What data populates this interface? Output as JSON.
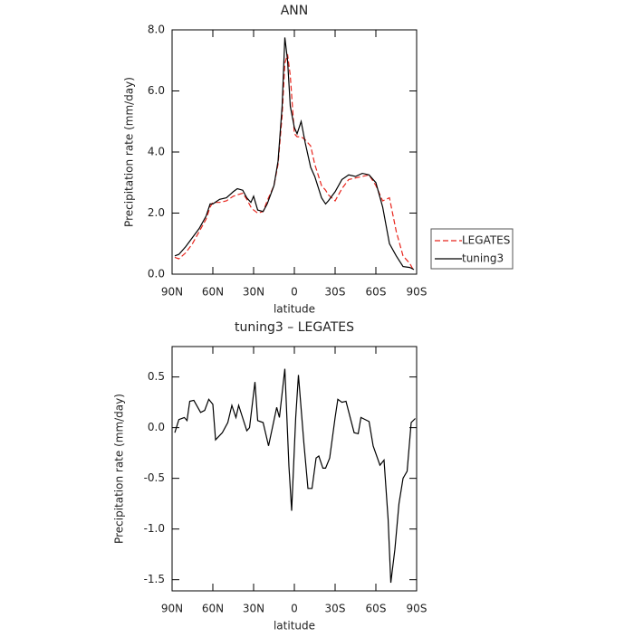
{
  "chart_data": [
    {
      "type": "line",
      "title": "ANN",
      "x_label": "latitude",
      "y_label": "Precipitation rate (mm/day)",
      "x": [
        88,
        85,
        80,
        75,
        70,
        65,
        62,
        60,
        55,
        50,
        45,
        42,
        38,
        35,
        32,
        30,
        27,
        23,
        20,
        15,
        12,
        9,
        7,
        5,
        3,
        0,
        -2,
        -5,
        -8,
        -12,
        -15,
        -20,
        -23,
        -25,
        -30,
        -35,
        -40,
        -45,
        -50,
        -55,
        -60,
        -65,
        -70,
        -75,
        -80,
        -85,
        -88
      ],
      "series": [
        {
          "name": "LEGATES",
          "color": "#e8241c",
          "dashed": true,
          "values": [
            0.55,
            0.5,
            0.7,
            1.0,
            1.4,
            1.8,
            2.2,
            2.35,
            2.35,
            2.4,
            2.55,
            2.6,
            2.65,
            2.45,
            2.2,
            2.1,
            2.0,
            2.05,
            2.4,
            2.9,
            3.6,
            5.2,
            6.9,
            7.2,
            6.5,
            4.6,
            4.5,
            4.5,
            4.4,
            4.2,
            3.6,
            2.9,
            2.75,
            2.6,
            2.4,
            2.8,
            3.1,
            3.15,
            3.2,
            3.25,
            2.9,
            2.4,
            2.5,
            1.4,
            0.6,
            0.35,
            0.1
          ]
        },
        {
          "name": "tuning3",
          "color": "#000000",
          "dashed": false,
          "values": [
            0.6,
            0.65,
            0.9,
            1.2,
            1.5,
            1.9,
            2.3,
            2.3,
            2.45,
            2.5,
            2.7,
            2.8,
            2.75,
            2.5,
            2.35,
            2.55,
            2.1,
            2.05,
            2.3,
            2.9,
            3.7,
            5.5,
            7.75,
            7.0,
            5.5,
            4.8,
            4.6,
            5.0,
            4.3,
            3.5,
            3.2,
            2.5,
            2.3,
            2.4,
            2.7,
            3.1,
            3.25,
            3.2,
            3.3,
            3.25,
            3.0,
            2.2,
            1.0,
            0.6,
            0.25,
            0.22,
            0.15
          ]
        }
      ],
      "xlim": [
        90,
        -90
      ],
      "xticks": [
        {
          "value": 90,
          "label": "90N"
        },
        {
          "value": 60,
          "label": "60N"
        },
        {
          "value": 30,
          "label": "30N"
        },
        0,
        {
          "value": -30,
          "label": "30S"
        },
        {
          "value": -60,
          "label": "60S"
        },
        {
          "value": -90,
          "label": "90S"
        }
      ],
      "ylim": [
        0,
        8
      ],
      "yticks": [
        {
          "value": 0,
          "label": "0.0"
        },
        {
          "value": 2,
          "label": "2.0"
        },
        {
          "value": 4,
          "label": "4.0"
        },
        {
          "value": 6,
          "label": "6.0"
        },
        {
          "value": 8,
          "label": "8.0"
        }
      ],
      "legend": "outside-right"
    },
    {
      "type": "line",
      "title": "tuning3 – LEGATES",
      "x_label": "latitude",
      "y_label": "Precipitation rate (mm/day)",
      "x": [
        88,
        85,
        81,
        79,
        77,
        74,
        69,
        66,
        63,
        60,
        58,
        53,
        49,
        46,
        43,
        41,
        35,
        33,
        29,
        27,
        23,
        19,
        13,
        11,
        7,
        4,
        2,
        -1,
        -3,
        -7,
        -10,
        -13,
        -16,
        -18,
        -21,
        -23,
        -26,
        -30,
        -32,
        -35,
        -38,
        -44,
        -47,
        -49,
        -55,
        -58,
        -63,
        -66,
        -69,
        -71,
        -74,
        -77,
        -80,
        -83,
        -86,
        -89
      ],
      "series": [
        {
          "name": "tuning3",
          "color": "#000000",
          "dashed": false,
          "values": [
            -0.05,
            0.08,
            0.1,
            0.07,
            0.26,
            0.27,
            0.15,
            0.17,
            0.28,
            0.23,
            -0.12,
            -0.05,
            0.05,
            0.22,
            0.1,
            0.22,
            -0.03,
            0.0,
            0.45,
            0.07,
            0.05,
            -0.18,
            0.2,
            0.1,
            0.58,
            -0.38,
            -0.82,
            0.1,
            0.52,
            -0.15,
            -0.6,
            -0.6,
            -0.3,
            -0.28,
            -0.4,
            -0.4,
            -0.3,
            0.1,
            0.28,
            0.25,
            0.26,
            -0.05,
            -0.06,
            0.1,
            0.06,
            -0.18,
            -0.37,
            -0.32,
            -0.9,
            -1.53,
            -1.2,
            -0.75,
            -0.5,
            -0.43,
            0.05,
            0.09
          ]
        }
      ],
      "xlim": [
        90,
        -90
      ],
      "xticks": [
        {
          "value": 90,
          "label": "90N"
        },
        {
          "value": 60,
          "label": "60N"
        },
        {
          "value": 30,
          "label": "30N"
        },
        0,
        {
          "value": -30,
          "label": "30S"
        },
        {
          "value": -60,
          "label": "60S"
        },
        {
          "value": -90,
          "label": "90S"
        }
      ],
      "ylim": [
        -1.61,
        0.8
      ],
      "yticks": [
        0.5,
        {
          "value": 0,
          "label": "0.0"
        },
        -0.5,
        {
          "value": -1,
          "label": "-1.0"
        },
        -1.5
      ]
    }
  ]
}
